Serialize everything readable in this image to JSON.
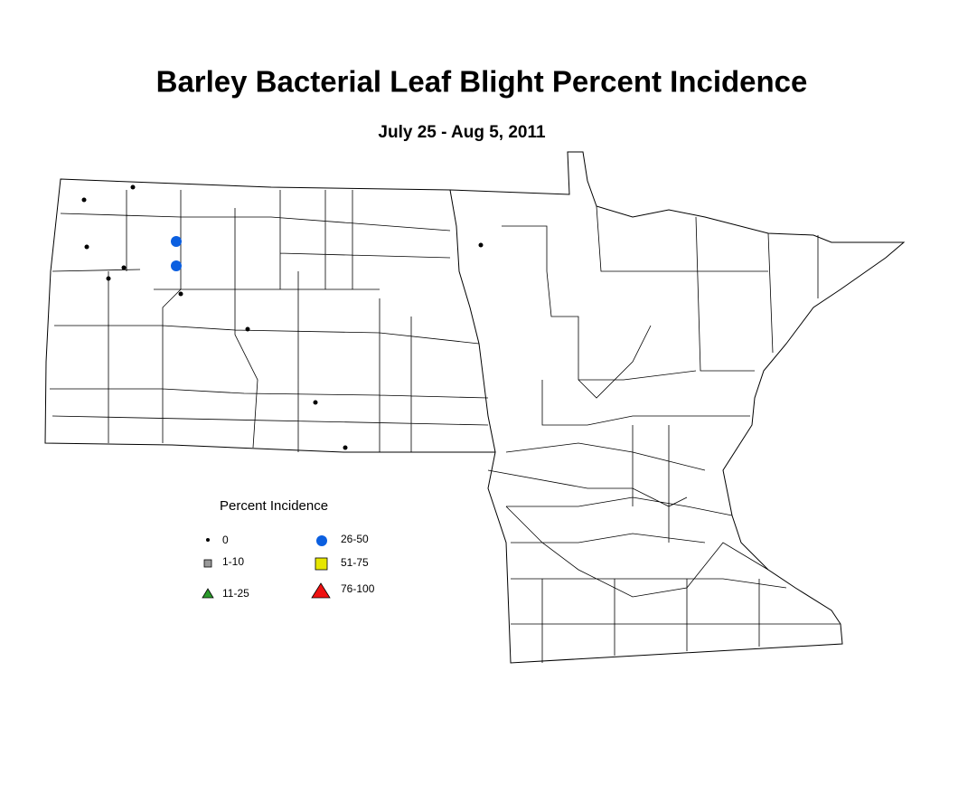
{
  "title": "Barley Bacterial Leaf Blight Percent Incidence",
  "subtitle": "July 25 - Aug 5, 2011",
  "legend": {
    "title": "Percent Incidence",
    "items": [
      "0",
      "1-10",
      "11-25",
      "26-50",
      "51-75",
      "76-100"
    ]
  }
}
